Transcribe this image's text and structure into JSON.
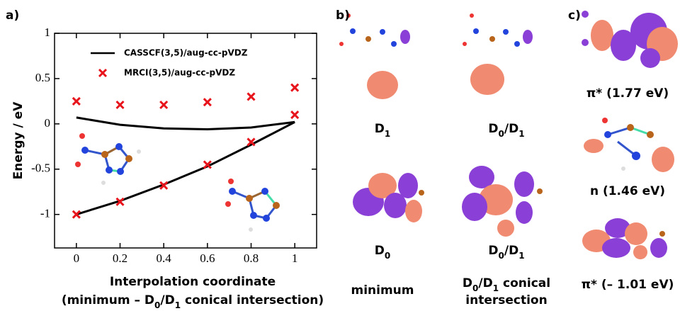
{
  "chart_data": {
    "type": "line",
    "panel_label": "a)",
    "y_label": "Energy / eV",
    "x_label": "Interpolation coordinate",
    "x_label_2": [
      "(minimum – D",
      "0",
      "/D",
      "1",
      " conical intersection)"
    ],
    "x": [
      0,
      0.2,
      0.4,
      0.6,
      0.8,
      1
    ],
    "series": [
      {
        "name": "CASSCF(3,5)/aug-cc-pVDZ",
        "color": "#000000",
        "style": "line",
        "curves": [
          [
            0.07,
            -0.01,
            -0.05,
            -0.06,
            -0.04,
            0.02
          ],
          [
            -1.0,
            -0.85,
            -0.67,
            -0.47,
            -0.23,
            0.02
          ]
        ]
      },
      {
        "name": "MRCI(3,5)/aug-cc-pVDZ",
        "color": "#e8141c",
        "style": "x",
        "curves": [
          [
            0.25,
            0.21,
            0.21,
            0.24,
            0.3,
            0.4
          ],
          [
            -1.0,
            -0.86,
            -0.68,
            -0.45,
            -0.2,
            0.1
          ]
        ]
      }
    ],
    "xlim": [
      -0.1,
      1.1
    ],
    "ylim": [
      -1.37,
      1
    ],
    "xticks": [
      0,
      0.2,
      0.4,
      0.6,
      0.8,
      1
    ],
    "yticks": [
      -1,
      -0.5,
      0,
      0.5,
      1
    ]
  },
  "panel_b": {
    "label": "b)",
    "captions": [
      [
        "D",
        "1"
      ],
      [
        "D",
        "0",
        "/D",
        "1"
      ],
      [
        "D",
        "0"
      ],
      [
        "D",
        "0",
        "/D",
        "1"
      ]
    ],
    "column_labels": [
      [
        "minimum"
      ],
      [
        "D",
        "0",
        "/D",
        "1",
        " conical"
      ]
    ],
    "column_label_2": "intersection"
  },
  "panel_c": {
    "label": "c)",
    "captions": [
      "π* (1.77 eV)",
      "n (1.46 eV)",
      "π* (– 1.01 eV)"
    ]
  }
}
